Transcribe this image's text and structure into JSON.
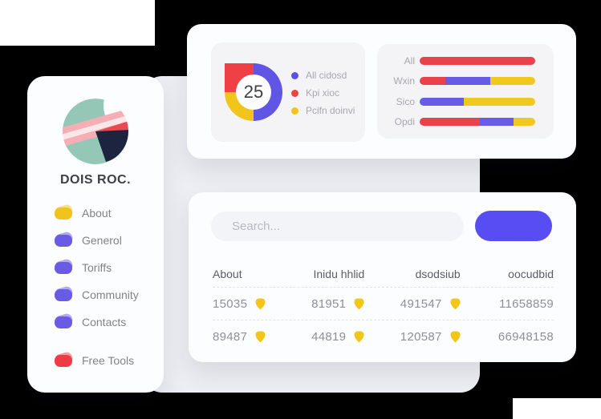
{
  "canvas": {
    "background": "#000000"
  },
  "sidebar": {
    "brand": "DOIS ROC.",
    "items": [
      {
        "label": "About",
        "icon_color": "#f1c31d"
      },
      {
        "label": "Generol",
        "icon_color": "#6a5ae4"
      },
      {
        "label": "Toriffs",
        "icon_color": "#6a5ae4"
      },
      {
        "label": "Community",
        "icon_color": "#6a5ae4"
      },
      {
        "label": "Contacts",
        "icon_color": "#6a5ae4"
      },
      {
        "label": "Free Tools",
        "icon_color": "#ed3c47",
        "separated": true
      }
    ]
  },
  "chart_data": [
    {
      "type": "donut",
      "center_value": "25",
      "arcs": [
        {
          "color": "#6156e4",
          "pct": 50
        },
        {
          "color": "#f2c51d",
          "pct": 25
        },
        {
          "color": "#ee4045",
          "pct": 25,
          "squared_corner": true
        }
      ],
      "legend": [
        {
          "label": "All cidosd",
          "color": "#5a50e8"
        },
        {
          "label": "Kpi xioc",
          "color": "#ee4045"
        },
        {
          "label": "Pcifn doinvi",
          "color": "#f2c51d"
        }
      ],
      "legend_position": "right"
    },
    {
      "type": "stacked-bar",
      "palette": {
        "red": "#ea424b",
        "blue": "#675ce3",
        "yellow": "#f0c81f"
      },
      "categories": [
        "All",
        "Wxin",
        "Sico",
        "Opdi"
      ],
      "rows": [
        {
          "label": "All",
          "segments": [
            {
              "color": "red",
              "pct": 100
            }
          ]
        },
        {
          "label": "Wxin",
          "segments": [
            {
              "color": "red",
              "pct": 22
            },
            {
              "color": "blue",
              "pct": 39
            },
            {
              "color": "yellow",
              "pct": 39
            }
          ]
        },
        {
          "label": "Sico",
          "segments": [
            {
              "color": "blue",
              "pct": 38
            },
            {
              "color": "yellow",
              "pct": 62
            }
          ]
        },
        {
          "label": "Opdi",
          "segments": [
            {
              "color": "red",
              "pct": 52
            },
            {
              "color": "blue",
              "pct": 29
            },
            {
              "color": "yellow",
              "pct": 19
            }
          ]
        }
      ]
    }
  ],
  "bottom_card": {
    "search_placeholder": "Search...",
    "button_label": "",
    "button_color": "#574df2",
    "table": {
      "shield_color": "#f2c51a",
      "headers": [
        "About",
        "Inidu hhlid",
        "dsodsiub",
        "oocudbid"
      ],
      "rows": [
        {
          "c0": "15035",
          "c1": "81951",
          "c2": "491547",
          "c3": "11658859"
        },
        {
          "c0": "89487",
          "c1": "44819",
          "c2": "120587",
          "c3": "66948158"
        }
      ]
    }
  }
}
